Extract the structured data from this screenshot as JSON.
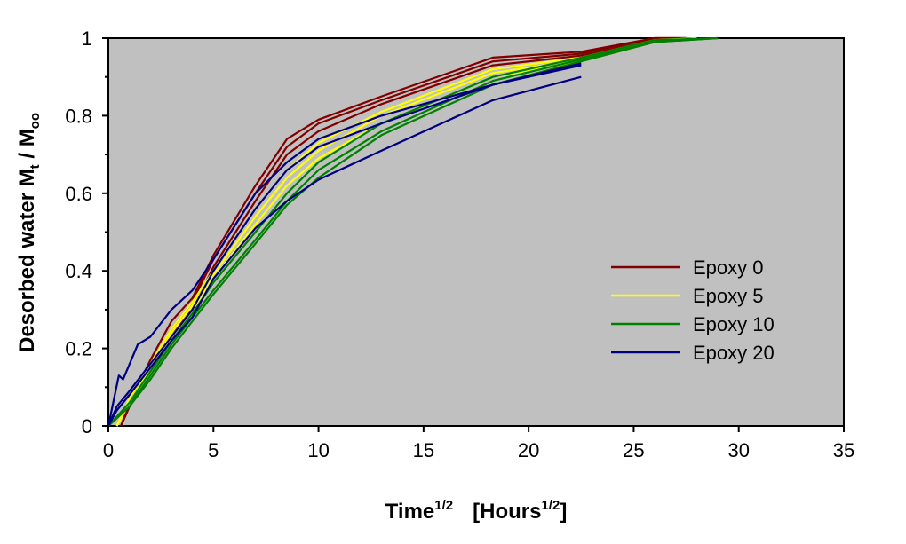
{
  "chart_data": {
    "type": "line",
    "title": "",
    "xlabel": {
      "main": "Time",
      "sup": "1/2",
      "bracket_open": "[Hours",
      "bracket_sup": "1/2",
      "bracket_close": "]"
    },
    "ylabel": {
      "main": "Desorbed water  M",
      "sub1": "t",
      "mid": " / M",
      "sub2": "oo"
    },
    "xlim": [
      0,
      35
    ],
    "ylim": [
      0,
      1
    ],
    "x_ticks": [
      "0",
      "5",
      "10",
      "15",
      "20",
      "25",
      "30",
      "35"
    ],
    "y_ticks": [
      "0",
      "0.2",
      "0.4",
      "0.6",
      "0.8",
      "1"
    ],
    "grid": false,
    "legend_position": "right-center",
    "plot_background": "#c0c0c0",
    "series": [
      {
        "name": "Epoxy 0",
        "color": "#800000",
        "lines": [
          [
            [
              0.6,
              0
            ],
            [
              1,
              0.06
            ],
            [
              2,
              0.17
            ],
            [
              3,
              0.27
            ],
            [
              4,
              0.33
            ],
            [
              5,
              0.44
            ],
            [
              7,
              0.62
            ],
            [
              8.5,
              0.74
            ],
            [
              10,
              0.79
            ],
            [
              13,
              0.85
            ],
            [
              18.3,
              0.95
            ],
            [
              22.5,
              0.965
            ],
            [
              26,
              1.0
            ],
            [
              27.5,
              1.0
            ]
          ],
          [
            [
              0.6,
              0
            ],
            [
              1,
              0.05
            ],
            [
              2,
              0.16
            ],
            [
              3,
              0.25
            ],
            [
              4,
              0.32
            ],
            [
              5,
              0.43
            ],
            [
              7,
              0.6
            ],
            [
              8.5,
              0.72
            ],
            [
              10,
              0.78
            ],
            [
              13,
              0.84
            ],
            [
              18.3,
              0.94
            ],
            [
              22.5,
              0.96
            ],
            [
              26,
              1.0
            ],
            [
              27.5,
              1.0
            ]
          ],
          [
            [
              0.6,
              0
            ],
            [
              1,
              0.05
            ],
            [
              2,
              0.15
            ],
            [
              3,
              0.24
            ],
            [
              4,
              0.3
            ],
            [
              5,
              0.41
            ],
            [
              7,
              0.58
            ],
            [
              8.5,
              0.7
            ],
            [
              10,
              0.76
            ],
            [
              13,
              0.83
            ],
            [
              18.3,
              0.93
            ],
            [
              22.5,
              0.955
            ],
            [
              26,
              0.995
            ],
            [
              27.5,
              1.0
            ]
          ]
        ]
      },
      {
        "name": "Epoxy 5",
        "color": "#ffff00",
        "lines": [
          [
            [
              0.4,
              0
            ],
            [
              1,
              0.07
            ],
            [
              2,
              0.16
            ],
            [
              3,
              0.25
            ],
            [
              4,
              0.32
            ],
            [
              5,
              0.4
            ],
            [
              7,
              0.56
            ],
            [
              8.5,
              0.66
            ],
            [
              10,
              0.73
            ],
            [
              13,
              0.81
            ],
            [
              18.3,
              0.92
            ],
            [
              22.5,
              0.95
            ],
            [
              26,
              0.995
            ],
            [
              28,
              1.0
            ]
          ],
          [
            [
              0.4,
              0
            ],
            [
              1,
              0.06
            ],
            [
              2,
              0.15
            ],
            [
              3,
              0.24
            ],
            [
              4,
              0.31
            ],
            [
              5,
              0.39
            ],
            [
              7,
              0.54
            ],
            [
              8.5,
              0.64
            ],
            [
              10,
              0.71
            ],
            [
              13,
              0.8
            ],
            [
              18.3,
              0.91
            ],
            [
              22.5,
              0.945
            ],
            [
              26,
              0.99
            ],
            [
              28,
              1.0
            ]
          ],
          [
            [
              0.4,
              0
            ],
            [
              1,
              0.06
            ],
            [
              2,
              0.14
            ],
            [
              3,
              0.23
            ],
            [
              4,
              0.3
            ],
            [
              5,
              0.38
            ],
            [
              7,
              0.52
            ],
            [
              8.5,
              0.62
            ],
            [
              10,
              0.69
            ],
            [
              13,
              0.78
            ],
            [
              18.3,
              0.9
            ],
            [
              22.5,
              0.94
            ],
            [
              26,
              0.99
            ],
            [
              28,
              1.0
            ]
          ]
        ]
      },
      {
        "name": "Epoxy 10",
        "color": "#008000",
        "lines": [
          [
            [
              0,
              0
            ],
            [
              1,
              0.06
            ],
            [
              2,
              0.14
            ],
            [
              3,
              0.22
            ],
            [
              4,
              0.29
            ],
            [
              5,
              0.37
            ],
            [
              7,
              0.5
            ],
            [
              8.5,
              0.6
            ],
            [
              10,
              0.68
            ],
            [
              13,
              0.78
            ],
            [
              18.3,
              0.9
            ],
            [
              22.5,
              0.95
            ],
            [
              26,
              0.995
            ],
            [
              29,
              1.0
            ]
          ],
          [
            [
              0,
              0
            ],
            [
              1,
              0.05
            ],
            [
              2,
              0.13
            ],
            [
              3,
              0.21
            ],
            [
              4,
              0.28
            ],
            [
              5,
              0.35
            ],
            [
              7,
              0.48
            ],
            [
              8.5,
              0.58
            ],
            [
              10,
              0.66
            ],
            [
              13,
              0.76
            ],
            [
              18.3,
              0.89
            ],
            [
              22.5,
              0.945
            ],
            [
              26,
              0.99
            ],
            [
              29,
              1.0
            ]
          ],
          [
            [
              0,
              0
            ],
            [
              1,
              0.05
            ],
            [
              2,
              0.12
            ],
            [
              3,
              0.2
            ],
            [
              4,
              0.27
            ],
            [
              5,
              0.34
            ],
            [
              7,
              0.47
            ],
            [
              8.5,
              0.57
            ],
            [
              10,
              0.64
            ],
            [
              13,
              0.75
            ],
            [
              18.3,
              0.88
            ],
            [
              22.5,
              0.94
            ],
            [
              26,
              0.99
            ],
            [
              29,
              1.0
            ]
          ]
        ]
      },
      {
        "name": "Epoxy 20",
        "color": "#000080",
        "lines": [
          [
            [
              0,
              0
            ],
            [
              0.5,
              0.13
            ],
            [
              0.7,
              0.12
            ],
            [
              1.4,
              0.21
            ],
            [
              2,
              0.23
            ],
            [
              3,
              0.3
            ],
            [
              4,
              0.35
            ],
            [
              5,
              0.43
            ],
            [
              7,
              0.6
            ],
            [
              8.5,
              0.68
            ],
            [
              10,
              0.74
            ],
            [
              13,
              0.8
            ],
            [
              18.3,
              0.88
            ],
            [
              22.5,
              0.935
            ]
          ],
          [
            [
              0,
              0
            ],
            [
              0.4,
              0.05
            ],
            [
              1,
              0.09
            ],
            [
              2,
              0.16
            ],
            [
              3,
              0.23
            ],
            [
              4,
              0.3
            ],
            [
              5,
              0.4
            ],
            [
              7,
              0.56
            ],
            [
              8.5,
              0.66
            ],
            [
              10,
              0.72
            ],
            [
              13,
              0.78
            ],
            [
              18.3,
              0.88
            ],
            [
              22.5,
              0.93
            ]
          ],
          [
            [
              0,
              0
            ],
            [
              0.4,
              0.04
            ],
            [
              1,
              0.08
            ],
            [
              2,
              0.15
            ],
            [
              3,
              0.22
            ],
            [
              4,
              0.28
            ],
            [
              5,
              0.38
            ],
            [
              7,
              0.51
            ],
            [
              8.5,
              0.58
            ],
            [
              10,
              0.635
            ],
            [
              13,
              0.71
            ],
            [
              18.3,
              0.84
            ],
            [
              22.5,
              0.9
            ]
          ]
        ]
      }
    ]
  }
}
